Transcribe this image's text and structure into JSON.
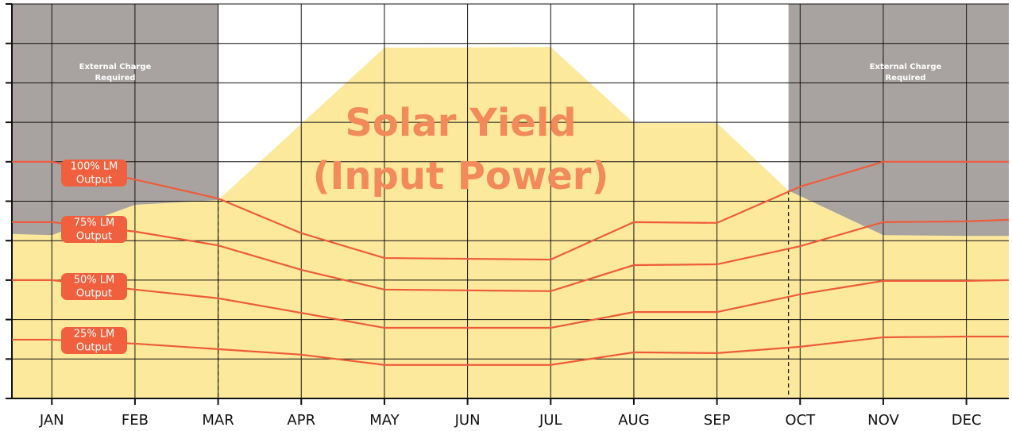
{
  "chart_data": {
    "type": "line",
    "title": [
      "Solar Yield",
      "(Input Power)"
    ],
    "xlim": [
      -0.48,
      11.51
    ],
    "xticks": [
      {
        "value": 0,
        "label": "JAN"
      },
      {
        "value": 1,
        "label": "FEB"
      },
      {
        "value": 2,
        "label": "MAR"
      },
      {
        "value": 3,
        "label": "APR"
      },
      {
        "value": 4,
        "label": "MAY"
      },
      {
        "value": 5,
        "label": "JUN"
      },
      {
        "value": 6,
        "label": "JUL"
      },
      {
        "value": 7,
        "label": "AUG"
      },
      {
        "value": 8,
        "label": "SEP"
      },
      {
        "value": 9,
        "label": "OCT"
      },
      {
        "value": 10,
        "label": "NOV"
      },
      {
        "value": 11,
        "label": "DEC"
      }
    ],
    "ylim": [
      0,
      10
    ],
    "yticks": [
      0,
      1,
      2,
      3,
      4,
      5,
      6,
      7,
      8,
      9,
      10
    ],
    "grid": true,
    "shaded_regions": [
      {
        "x": [
          -0.48,
          2
        ],
        "label": [
          "External Charge",
          "Required"
        ],
        "color": "#a8a3a1"
      },
      {
        "x": [
          8.86,
          11.51
        ],
        "label": [
          "External Charge",
          "Required"
        ],
        "color": "#a8a3a1"
      }
    ],
    "area": {
      "color": "#fde99c",
      "x": [
        -0.48,
        0,
        1,
        2,
        4,
        6,
        7,
        8,
        8.86,
        10,
        11,
        11.51
      ],
      "values": [
        4.17,
        4.14,
        4.91,
        5.03,
        8.89,
        8.91,
        6.98,
        6.98,
        5.27,
        4.14,
        4.12,
        4.12
      ]
    },
    "series": [
      {
        "label": [
          "100% LM",
          "Output"
        ],
        "color": "#ee5b3b",
        "x": [
          -0.48,
          0,
          1,
          2,
          3,
          4,
          5,
          6,
          7,
          8,
          9,
          10,
          11,
          11.51
        ],
        "values": [
          6.0,
          6.0,
          5.55,
          5.07,
          4.19,
          3.56,
          3.54,
          3.52,
          4.47,
          4.45,
          5.37,
          6.0,
          6.0,
          6.0
        ]
      },
      {
        "label": [
          "75% LM",
          "Output"
        ],
        "color": "#ee5b3b",
        "x": [
          -0.48,
          0,
          1,
          2,
          3,
          4,
          5,
          6,
          7,
          8,
          9,
          10,
          11,
          11.51
        ],
        "values": [
          4.47,
          4.47,
          4.23,
          3.88,
          3.26,
          2.76,
          2.74,
          2.72,
          3.38,
          3.4,
          3.86,
          4.47,
          4.49,
          4.53
        ]
      },
      {
        "label": [
          "50% LM",
          "Output"
        ],
        "color": "#ee5b3b",
        "x": [
          -0.48,
          0,
          1,
          2,
          3,
          4,
          5,
          6,
          7,
          8,
          9,
          10,
          11,
          11.51
        ],
        "values": [
          3.0,
          3.0,
          2.76,
          2.54,
          2.17,
          1.79,
          1.79,
          1.79,
          2.19,
          2.19,
          2.64,
          2.98,
          2.98,
          3.0
        ]
      },
      {
        "label": [
          "25% LM",
          "Output"
        ],
        "color": "#ee5b3b",
        "x": [
          -0.48,
          0,
          1,
          2,
          3,
          4,
          5,
          6,
          7,
          8,
          9,
          10,
          11,
          11.51
        ],
        "values": [
          1.49,
          1.49,
          1.39,
          1.25,
          1.11,
          0.85,
          0.85,
          0.85,
          1.17,
          1.15,
          1.31,
          1.55,
          1.57,
          1.57
        ]
      }
    ]
  }
}
